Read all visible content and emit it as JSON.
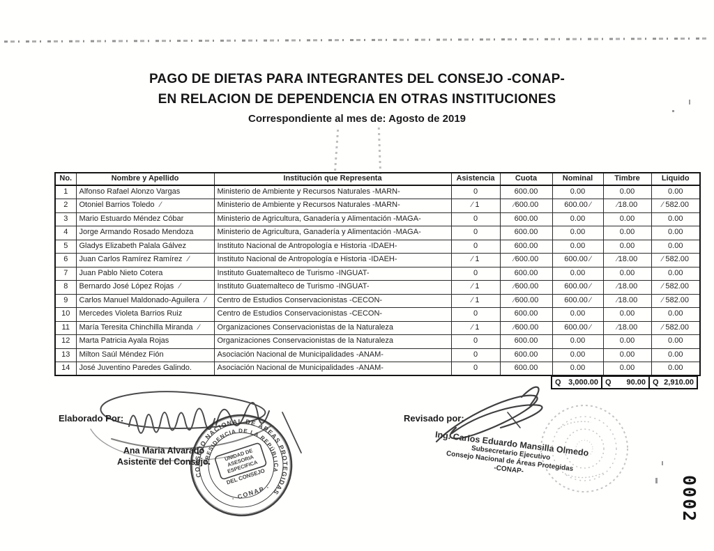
{
  "title": {
    "line1": "PAGO DE DIETAS PARA INTEGRANTES DEL CONSEJO -CONAP-",
    "line2": "EN RELACION DE DEPENDENCIA EN OTRAS INSTITUCIONES",
    "line3": "Correspondiente al mes de:  Agosto de 2019"
  },
  "table": {
    "headers": [
      "No.",
      "Nombre y Apellido",
      "Institución que Representa",
      "Asistencia",
      "Cuota",
      "Nominal",
      "Timbre",
      "Liquido"
    ],
    "rows": [
      {
        "no": "1",
        "name": "Alfonso Rafael Alonzo Vargas",
        "institution": "Ministerio de Ambiente y Recursos Naturales -MARN-",
        "asistencia": "0",
        "cuota": "600.00",
        "nominal": "0.00",
        "timbre": "0.00",
        "liquido": "0.00",
        "checked": false
      },
      {
        "no": "2",
        "name": "Otoniel Barrios Toledo",
        "institution": "Ministerio de Ambiente y Recursos Naturales -MARN-",
        "asistencia": "1",
        "cuota": "600.00",
        "nominal": "600.00",
        "timbre": "18.00",
        "liquido": "582.00",
        "checked": true
      },
      {
        "no": "3",
        "name": "Mario Estuardo Méndez Cóbar",
        "institution": "Ministerio de Agricultura, Ganadería y Alimentación -MAGA-",
        "asistencia": "0",
        "cuota": "600.00",
        "nominal": "0.00",
        "timbre": "0.00",
        "liquido": "0.00",
        "checked": false
      },
      {
        "no": "4",
        "name": "Jorge Armando Rosado Mendoza",
        "institution": "Ministerio de Agricultura, Ganadería y Alimentación -MAGA-",
        "asistencia": "0",
        "cuota": "600.00",
        "nominal": "0.00",
        "timbre": "0.00",
        "liquido": "0.00",
        "checked": false
      },
      {
        "no": "5",
        "name": "Gladys Elizabeth Palala Gálvez",
        "institution": "Instituto Nacional de Antropología e Historia -IDAEH-",
        "asistencia": "0",
        "cuota": "600.00",
        "nominal": "0.00",
        "timbre": "0.00",
        "liquido": "0.00",
        "checked": false
      },
      {
        "no": "6",
        "name": "Juan Carlos Ramírez Ramírez",
        "institution": "Instituto Nacional de Antropología e Historia -IDAEH-",
        "asistencia": "1",
        "cuota": "600.00",
        "nominal": "600.00",
        "timbre": "18.00",
        "liquido": "582.00",
        "checked": true
      },
      {
        "no": "7",
        "name": "Juan Pablo Nieto Cotera",
        "institution": "Instituto Guatemalteco de Turismo -INGUAT-",
        "asistencia": "0",
        "cuota": "600.00",
        "nominal": "0.00",
        "timbre": "0.00",
        "liquido": "0.00",
        "checked": false
      },
      {
        "no": "8",
        "name": "Bernardo José López Rojas",
        "institution": "Instituto Guatemalteco de Turismo -INGUAT-",
        "asistencia": "1",
        "cuota": "600.00",
        "nominal": "600.00",
        "timbre": "18.00",
        "liquido": "582.00",
        "checked": true
      },
      {
        "no": "9",
        "name": "Carlos Manuel Maldonado-Aguilera",
        "institution": "Centro de Estudios Conservacionistas -CECON-",
        "asistencia": "1",
        "cuota": "600.00",
        "nominal": "600.00",
        "timbre": "18.00",
        "liquido": "582.00",
        "checked": true
      },
      {
        "no": "10",
        "name": "Mercedes Violeta Barrios Ruiz",
        "institution": "Centro de Estudios Conservacionistas -CECON-",
        "asistencia": "0",
        "cuota": "600.00",
        "nominal": "0.00",
        "timbre": "0.00",
        "liquido": "0.00",
        "checked": false
      },
      {
        "no": "11",
        "name": "María Teresita Chinchilla Miranda",
        "institution": "Organizaciones Conservacionistas de la Naturaleza",
        "asistencia": "1",
        "cuota": "600.00",
        "nominal": "600.00",
        "timbre": "18.00",
        "liquido": "582.00",
        "checked": true
      },
      {
        "no": "12",
        "name": "Marta Patricia Ayala Rojas",
        "institution": "Organizaciones Conservacionistas de la Naturaleza",
        "asistencia": "0",
        "cuota": "600.00",
        "nominal": "0.00",
        "timbre": "0.00",
        "liquido": "0.00",
        "checked": false
      },
      {
        "no": "13",
        "name": "Milton Saúl Méndez Fión",
        "institution": "Asociación Nacional de Municipalidades -ANAM-",
        "asistencia": "0",
        "cuota": "600.00",
        "nominal": "0.00",
        "timbre": "0.00",
        "liquido": "0.00",
        "checked": false
      },
      {
        "no": "14",
        "name": "José Juventino Paredes Galindo.",
        "institution": "Asociación Nacional de Municipalidades -ANAM-",
        "asistencia": "0",
        "cuota": "600.00",
        "nominal": "0.00",
        "timbre": "0.00",
        "liquido": "0.00",
        "checked": false
      }
    ],
    "totals": {
      "currency": "Q",
      "nominal": "3,000.00",
      "timbre": "90.00",
      "liquido": "2,910.00"
    }
  },
  "signatures": {
    "left": {
      "label": "Elaborado Por:",
      "name": "Ana Maria Alvarado",
      "title": "Asistente del Consejo."
    },
    "right": {
      "label": "Revisado por:",
      "name": "Ing. Carlos Eduardo Mansilla Olmedo",
      "title1": "Subsecretario Ejecutivo",
      "title2": "Consejo Nacional de Áreas Protegidas",
      "title3": "-CONAP-"
    }
  },
  "stamp": {
    "ring_outer": "CONSEJO NACIONAL DE ÁREAS PROTEGIDAS",
    "ring_inner": "PRESIDENCIA DE LA REPÚBLICA",
    "center_line1": "UNIDAD DE",
    "center_line2": "ASESORIA",
    "center_line3": "ESPECIFICA",
    "center_line4": "DEL CONSEJO",
    "bottom": "· CONAP ·"
  },
  "page_number": "0002"
}
